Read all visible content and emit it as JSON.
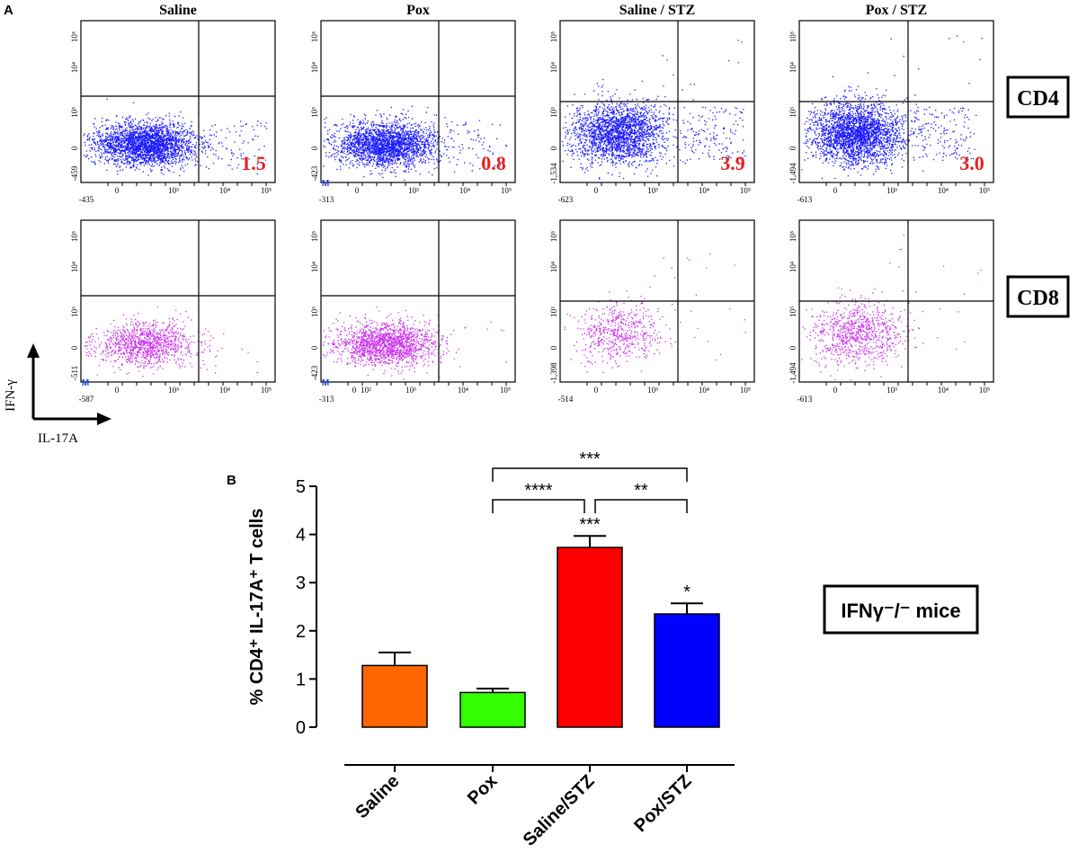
{
  "panels": {
    "a_label": "A",
    "b_label": "B"
  },
  "flow": {
    "columns": [
      "Saline",
      "Pox",
      "Saline / STZ",
      "Pox / STZ"
    ],
    "row_labels": [
      "CD4",
      "CD8"
    ],
    "cd4_percent_labels": [
      "1.5",
      "0.8",
      "3.9",
      "3.0"
    ],
    "y_tick_labels": [
      "10⁵",
      "10⁴",
      "10³",
      "0"
    ],
    "x_tick_labels": [
      "0",
      "10³",
      "10⁴",
      "10⁵"
    ],
    "x_tick_labels_pox_cd8": [
      "0",
      "10²",
      "10³",
      "10⁴",
      "10⁵"
    ],
    "cd4_y_min_labels": [
      "-459",
      "-423",
      "-1,534",
      "-1,494"
    ],
    "cd4_x_min_labels": [
      "-435",
      "-313",
      "-623",
      "-613"
    ],
    "cd8_y_min_labels": [
      "-511",
      "-423",
      "-1,398",
      "-1,494"
    ],
    "cd8_x_min_labels": [
      "-587",
      "-313",
      "-514",
      "-613"
    ],
    "gate_marker": "M",
    "axis_y_label": "IFN-γ",
    "axis_x_label": "IL-17A",
    "colors": {
      "cd4": "#1a1aff",
      "cd8": "#cc33ee",
      "percent": "#e8201f"
    }
  },
  "chart_data": {
    "type": "bar",
    "title": "",
    "categories": [
      "Saline",
      "Pox",
      "Saline/STZ",
      "Pox/STZ"
    ],
    "values": [
      1.28,
      0.72,
      3.73,
      2.35
    ],
    "errors": [
      0.27,
      0.08,
      0.24,
      0.22
    ],
    "colors": [
      "#ff6600",
      "#33ff00",
      "#ff0000",
      "#0000ff"
    ],
    "xlabel": "",
    "ylabel": "% CD4⁺ IL-17A⁺ T cells",
    "ylim": [
      0,
      5
    ],
    "yticks": [
      "0",
      "1",
      "2",
      "3",
      "4",
      "5"
    ],
    "bar_significance": [
      "",
      "",
      "***",
      "*"
    ],
    "comparisons": [
      {
        "from": "Pox",
        "to": "Pox/STZ",
        "label": "***"
      },
      {
        "from": "Pox",
        "to": "Saline/STZ",
        "label": "****"
      },
      {
        "from": "Saline/STZ",
        "to": "Pox/STZ",
        "label": "**"
      }
    ],
    "legend_box": "IFNγ⁻/⁻ mice"
  }
}
